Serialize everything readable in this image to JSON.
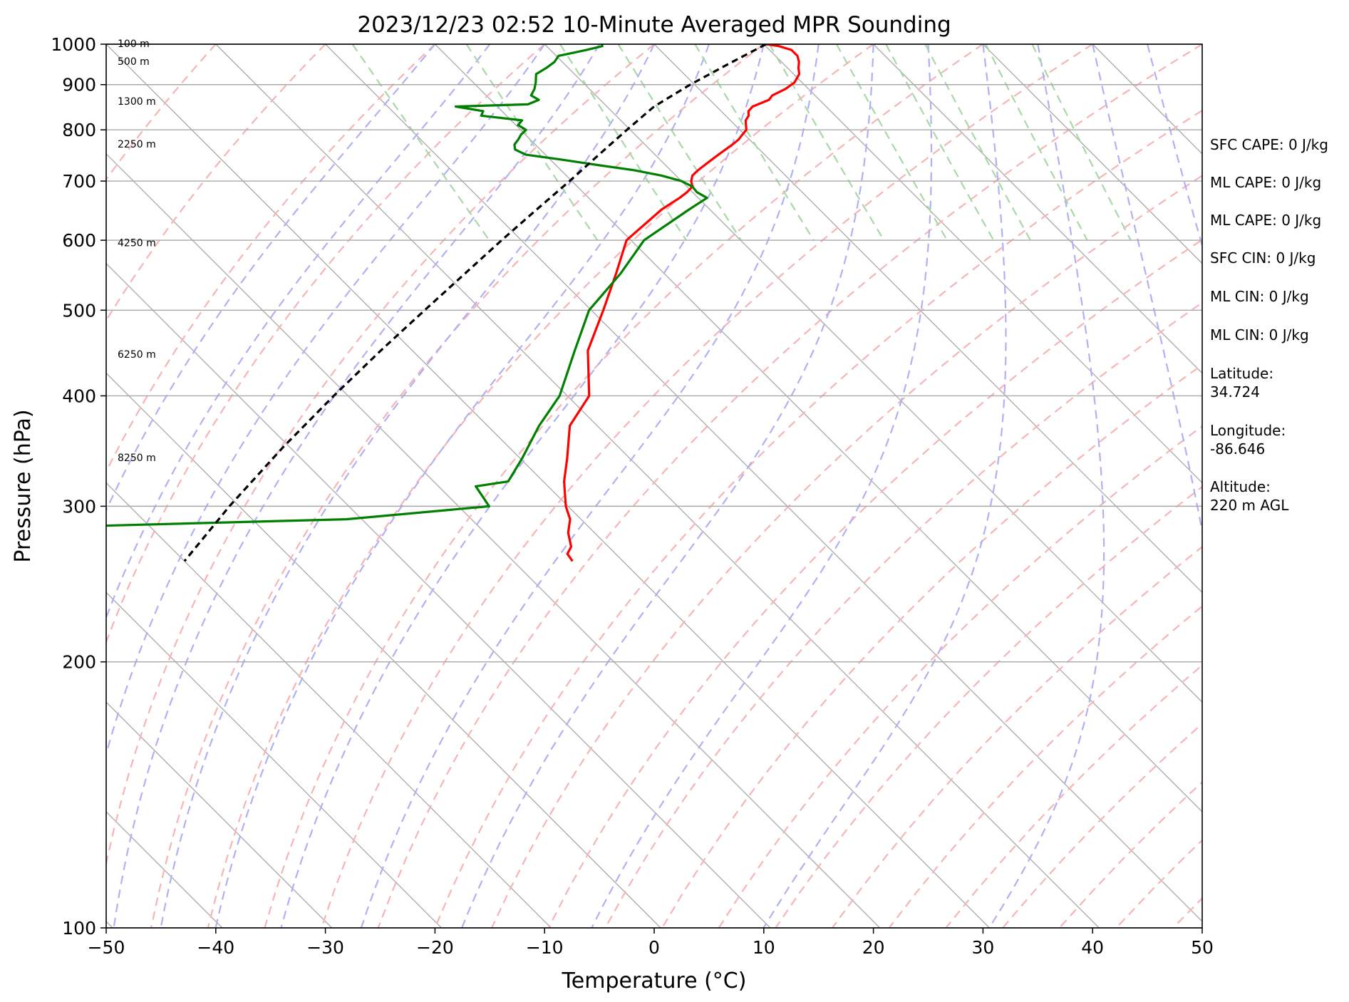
{
  "chart_data": {
    "type": "line",
    "title": "2023/12/23 02:52 10-Minute Averaged MPR Sounding",
    "xlabel": "Temperature (°C)",
    "ylabel": "Pressure (hPa)",
    "xlim": [
      -50,
      50
    ],
    "ylim": [
      1000,
      100
    ],
    "yscale": "log",
    "x_ticks": [
      "−50",
      "−40",
      "−30",
      "−20",
      "−10",
      "0",
      "10",
      "20",
      "30",
      "40",
      "50"
    ],
    "y_ticks": [
      "100",
      "200",
      "300",
      "400",
      "500",
      "600",
      "700",
      "800",
      "900",
      "1000"
    ],
    "isobars": [
      100,
      200,
      300,
      400,
      500,
      600,
      700,
      800,
      900,
      1000
    ],
    "skew_factor": 35,
    "series": [
      {
        "color": "#ff0000",
        "pressure": [
          1000,
          995,
          985,
          970,
          955,
          940,
          925,
          905,
          890,
          875,
          865,
          855,
          850,
          840,
          830,
          820,
          810,
          800,
          790,
          780,
          770,
          760,
          750,
          740,
          730,
          720,
          710,
          700,
          690,
          680,
          670,
          650,
          600,
          550,
          500,
          450,
          400,
          370,
          340,
          320,
          300,
          290,
          280,
          270,
          265,
          260
        ],
        "temperature": [
          10.2,
          11.2,
          12.0,
          12.0,
          11.6,
          11.0,
          10.5,
          9.3,
          7.9,
          6.1,
          5.4,
          4.0,
          3.3,
          2.5,
          2.1,
          1.4,
          1.0,
          0.6,
          -0.2,
          -1.0,
          -2.0,
          -3.1,
          -4.2,
          -5.3,
          -6.4,
          -7.5,
          -8.5,
          -9.1,
          -9.5,
          -10.5,
          -11.7,
          -14.4,
          -20.4,
          -24.4,
          -28.9,
          -34.0,
          -38.0,
          -42.5,
          -45.7,
          -48.1,
          -50.2,
          -51.0,
          -52.4,
          -53.4,
          -54.4,
          -54.6
        ]
      },
      {
        "color": "#008000",
        "pressure": [
          1000,
          995,
          985,
          970,
          955,
          940,
          925,
          905,
          890,
          875,
          865,
          855,
          850,
          840,
          830,
          820,
          810,
          800,
          790,
          780,
          770,
          760,
          750,
          740,
          730,
          720,
          710,
          700,
          690,
          680,
          670,
          650,
          600,
          550,
          500,
          450,
          400,
          370,
          340,
          320,
          316,
          300,
          290,
          285
        ],
        "temperature": [
          -4.8,
          -4.9,
          -6.7,
          -9.8,
          -10.7,
          -12.0,
          -13.5,
          -14.3,
          -15.0,
          -15.9,
          -15.6,
          -17.0,
          -23.8,
          -21.7,
          -22.3,
          -19.0,
          -19.8,
          -19.5,
          -20.4,
          -21.1,
          -21.9,
          -22.3,
          -21.8,
          -18.9,
          -16.2,
          -13.3,
          -11.3,
          -10.0,
          -9.5,
          -9.6,
          -9.2,
          -11.9,
          -18.8,
          -24.0,
          -30.2,
          -35.2,
          -40.7,
          -45.3,
          -49.8,
          -53.2,
          -56.6,
          -57.2,
          -71.4,
          -95.0
        ]
      },
      {
        "color": "#000000",
        "dashed": true,
        "pressure": [
          1000,
          950,
          900,
          850,
          800,
          750,
          700,
          650,
          600,
          550,
          500,
          450,
          400,
          350,
          300,
          260
        ],
        "temperature": [
          10.2,
          5.0,
          -0.4,
          -5.7,
          -10.3,
          -15.1,
          -20.2,
          -25.8,
          -31.8,
          -38.2,
          -45.2,
          -52.9,
          -61.3,
          -70.6,
          -80.9,
          -90.0
        ]
      }
    ],
    "height_labels": [
      {
        "pressure": 1000,
        "text": "100 m"
      },
      {
        "pressure": 955,
        "text": "500 m"
      },
      {
        "pressure": 860,
        "text": "1300 m"
      },
      {
        "pressure": 770,
        "text": "2250 m"
      },
      {
        "pressure": 595,
        "text": "4250 m"
      },
      {
        "pressure": 445,
        "text": "6250 m"
      },
      {
        "pressure": 340,
        "text": "8250 m"
      }
    ],
    "side_text": [
      "SFC CAPE: 0 J/kg",
      "ML CAPE: 0 J/kg",
      "ML CAPE: 0 J/kg",
      "SFC CIN: 0 J/kg",
      "ML CIN: 0 J/kg",
      "ML CIN: 0 J/kg",
      "Latitude:",
      "34.724",
      "Longitude:",
      "-86.646",
      "Altitude:",
      "220 m AGL"
    ],
    "colors": {
      "isotherm": "#a9a9a9",
      "dry_adiabat": "#f8b4b4",
      "moist_adiabat": "#b0b0f5",
      "mixing_ratio": "#a8d8a8",
      "temperature": "#ff0000",
      "dewpoint": "#008000",
      "parcel": "#000000"
    }
  }
}
